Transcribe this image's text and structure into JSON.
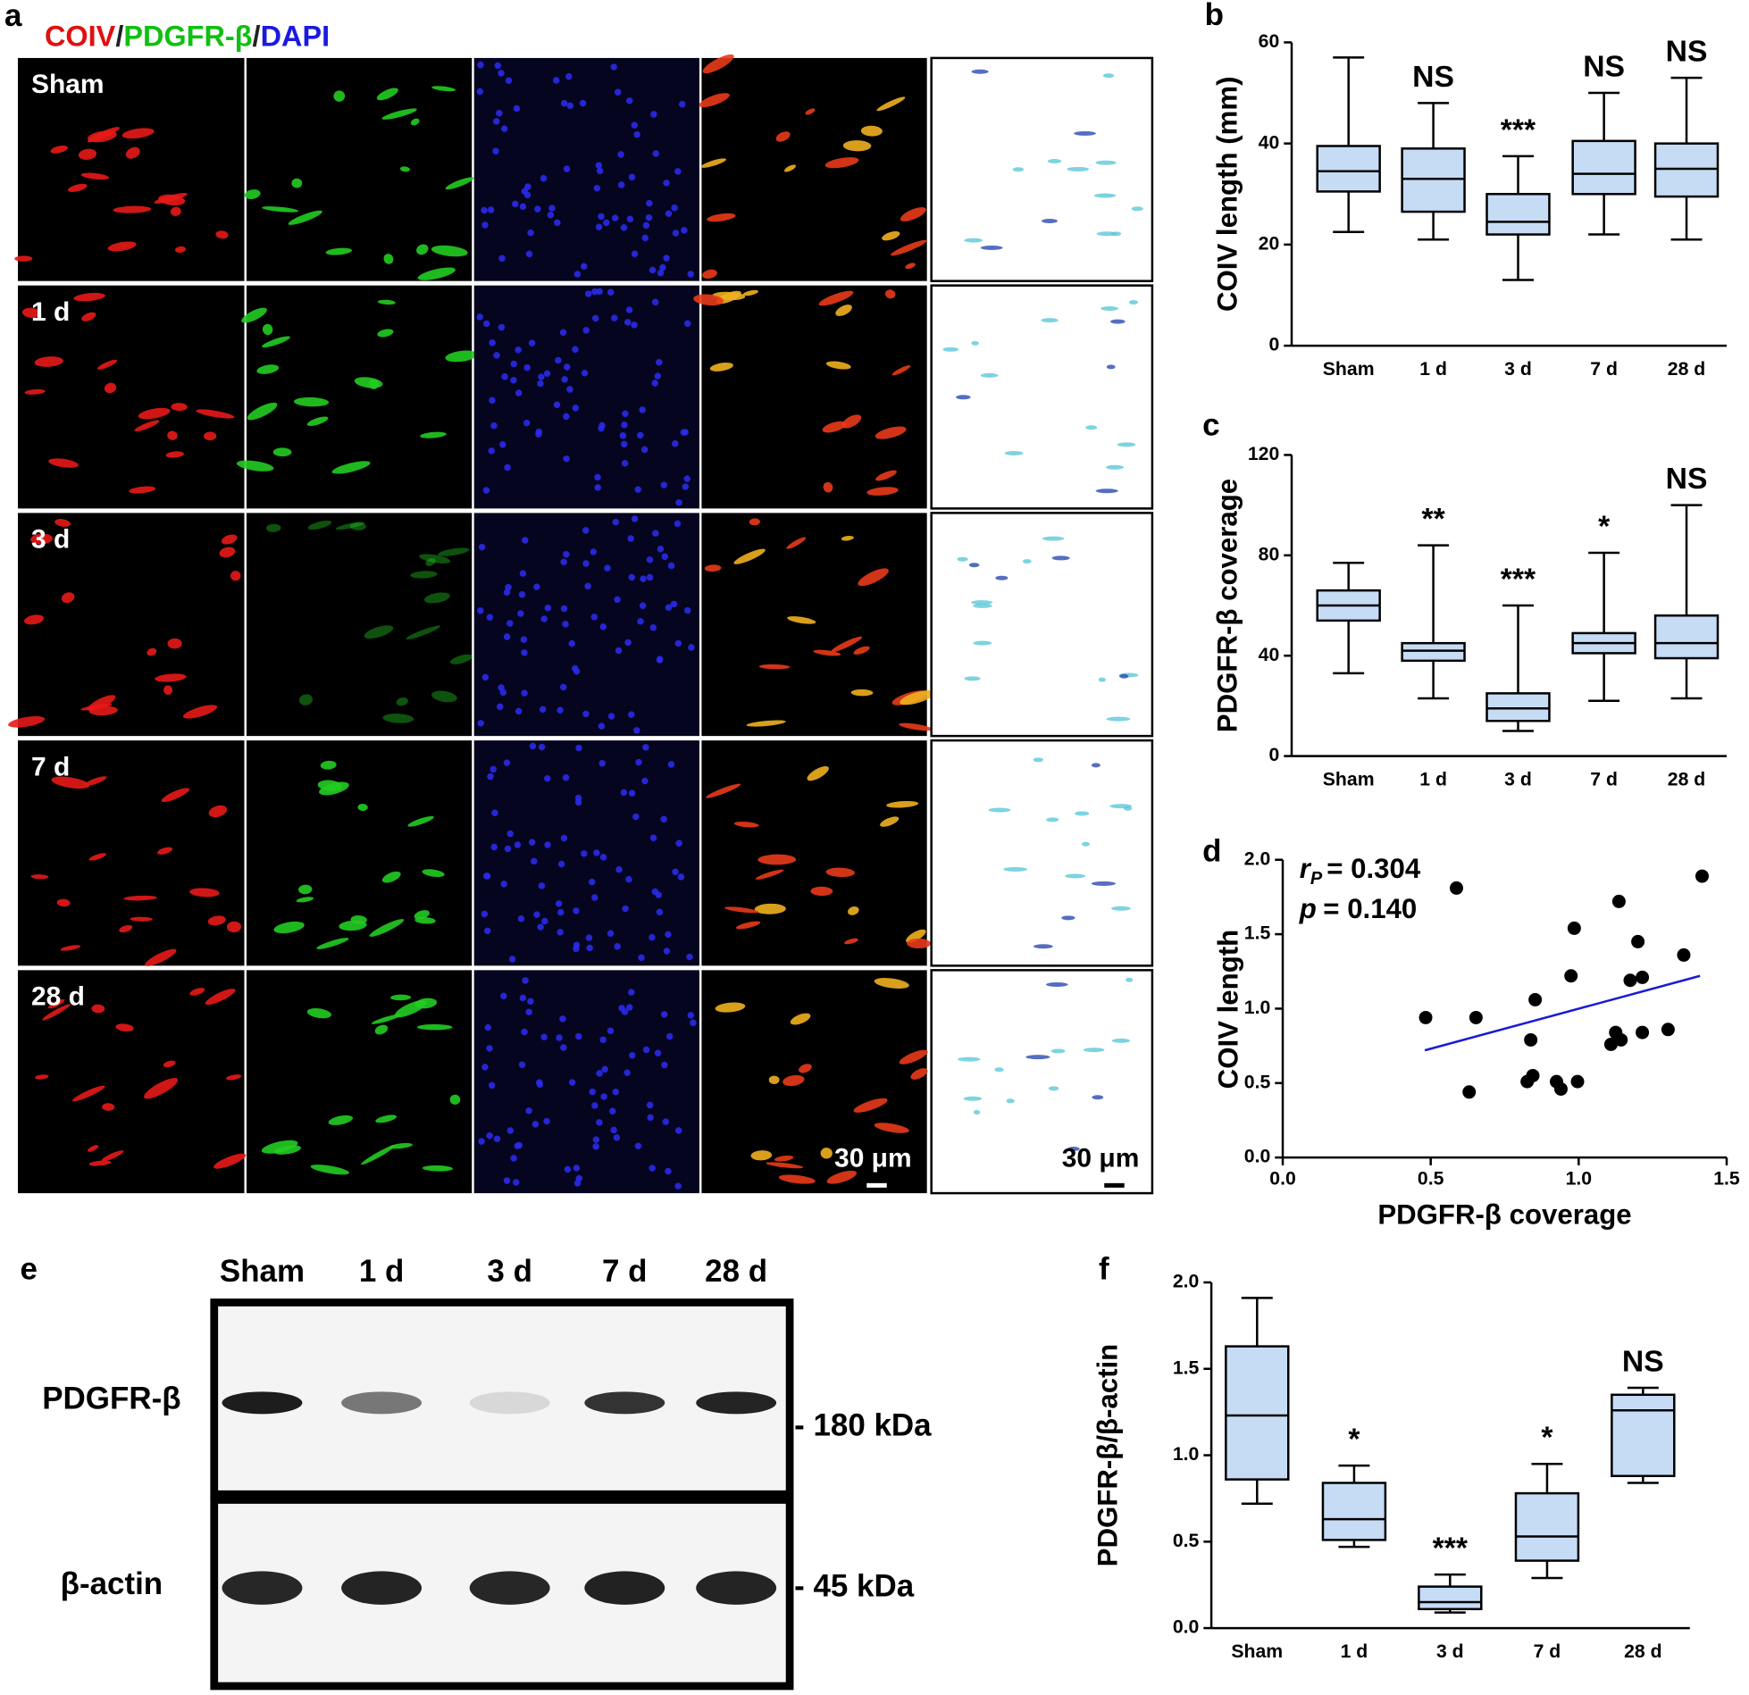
{
  "panel_a": {
    "label": "a",
    "title_parts": [
      "COIV",
      "/",
      "PDGFR-β",
      "/",
      "DAPI"
    ],
    "rows": [
      "Sham",
      "1 d",
      "3 d",
      "7 d",
      "28 d"
    ],
    "scale_bar": "30 μm"
  },
  "panel_e": {
    "label": "e",
    "lanes": [
      "Sham",
      "1 d",
      "3 d",
      "7 d",
      "28 d"
    ],
    "blots": [
      {
        "name": "PDGFR-β",
        "size": "- 180 kDa"
      },
      {
        "name": "β-actin",
        "size": "- 45 kDa"
      }
    ]
  },
  "chart_data": [
    {
      "type": "box",
      "label": "b",
      "ylabel": "COIV length (mm)",
      "categories": [
        "Sham",
        "1 d",
        "3 d",
        "7 d",
        "28 d"
      ],
      "stats": {
        "min": [
          22.5,
          21,
          13,
          22,
          21
        ],
        "q1": [
          30.5,
          26.5,
          22,
          30,
          29.5
        ],
        "median": [
          34.5,
          33,
          24.5,
          34,
          35
        ],
        "q3": [
          39.5,
          39,
          30,
          40.5,
          40
        ],
        "max": [
          57,
          48,
          37.5,
          50,
          53
        ]
      },
      "annotations": [
        null,
        "NS",
        "***",
        "NS",
        "NS"
      ],
      "color": "#c6dcf5",
      "ylim": [
        0,
        60
      ],
      "yticks": [
        0,
        20,
        40,
        60
      ]
    },
    {
      "type": "box",
      "label": "c",
      "ylabel": "PDGFR-β coverage",
      "categories": [
        "Sham",
        "1 d",
        "3 d",
        "7 d",
        "28 d"
      ],
      "stats": {
        "min": [
          33,
          23,
          10,
          22,
          23
        ],
        "q1": [
          54,
          38,
          14,
          41,
          39
        ],
        "median": [
          60,
          42,
          19,
          45,
          45
        ],
        "q3": [
          66,
          45,
          25,
          49,
          56
        ],
        "max": [
          77,
          84,
          60,
          81,
          100
        ]
      },
      "annotations": [
        null,
        "**",
        "***",
        "*",
        "NS"
      ],
      "color": "#c6dcf5",
      "ylim": [
        0,
        120
      ],
      "yticks": [
        0,
        40,
        80,
        120
      ]
    },
    {
      "type": "scatter",
      "label": "d",
      "xlabel": "PDGFR-β coverage",
      "ylabel": "COIV length",
      "stat_r": [
        "r",
        "P",
        "= 0.304"
      ],
      "stat_p": [
        "p",
        "= 0.140"
      ],
      "x": [
        0.587,
        1.417,
        1.136,
        0.483,
        0.653,
        0.63,
        0.985,
        0.853,
        0.974,
        1.2,
        1.355,
        1.215,
        1.174,
        0.838,
        1.125,
        1.143,
        1.215,
        1.302,
        1.109,
        0.845,
        0.826,
        0.925,
        0.94,
        0.996
      ],
      "y": [
        1.81,
        1.89,
        1.72,
        0.94,
        0.94,
        0.44,
        1.54,
        1.06,
        1.22,
        1.45,
        1.36,
        1.21,
        1.19,
        0.79,
        0.84,
        0.79,
        0.84,
        0.86,
        0.76,
        0.55,
        0.51,
        0.51,
        0.46,
        0.51
      ],
      "fit": {
        "x": [
          0.48,
          1.41
        ],
        "y": [
          0.72,
          1.22
        ],
        "color": "#1a1ad6"
      },
      "color": "#000000",
      "xlim": [
        0,
        1.5
      ],
      "ylim": [
        0,
        2.0
      ],
      "xticks": [
        {
          "value": 0,
          "label": "0.0"
        },
        {
          "value": 0.5,
          "label": "0.5"
        },
        {
          "value": 1,
          "label": "1.0"
        },
        {
          "value": 1.5,
          "label": "1.5"
        }
      ],
      "yticks": [
        {
          "value": 0,
          "label": "0.0"
        },
        {
          "value": 0.5,
          "label": "0.5"
        },
        {
          "value": 1,
          "label": "1.0"
        },
        {
          "value": 1.5,
          "label": "1.5"
        },
        {
          "value": 2,
          "label": "2.0"
        }
      ]
    },
    {
      "type": "box",
      "label": "f",
      "ylabel": "PDGFR-β/β-actin",
      "categories": [
        "Sham",
        "1 d",
        "3 d",
        "7 d",
        "28 d"
      ],
      "stats": {
        "min": [
          0.72,
          0.47,
          0.09,
          0.29,
          0.84
        ],
        "q1": [
          0.86,
          0.51,
          0.11,
          0.39,
          0.88
        ],
        "median": [
          1.23,
          0.63,
          0.15,
          0.53,
          1.26
        ],
        "q3": [
          1.63,
          0.84,
          0.24,
          0.78,
          1.35
        ],
        "max": [
          1.91,
          0.94,
          0.31,
          0.95,
          1.39
        ]
      },
      "annotations": [
        null,
        "*",
        "***",
        "*",
        "NS"
      ],
      "color": "#c6dcf5",
      "ylim": [
        0,
        2.0
      ],
      "yticks": [
        {
          "value": 0,
          "label": "0.0"
        },
        {
          "value": 0.5,
          "label": "0.5"
        },
        {
          "value": 1,
          "label": "1.0"
        },
        {
          "value": 1.5,
          "label": "1.5"
        },
        {
          "value": 2,
          "label": "2.0"
        }
      ]
    }
  ]
}
